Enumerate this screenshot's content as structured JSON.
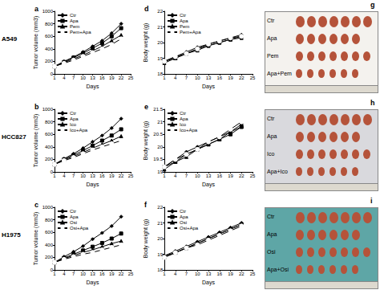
{
  "chart_data": [
    {
      "type": "line",
      "title": "a",
      "xlabel": "Days",
      "ylabel": "Tumor volume (mm3)",
      "x": [
        1,
        4,
        7,
        10,
        13,
        16,
        19,
        22
      ],
      "xlim": [
        1,
        25
      ],
      "xticks": [
        1,
        4,
        7,
        10,
        13,
        16,
        19,
        22,
        25
      ],
      "ylim": [
        0,
        1000
      ],
      "yticks": [
        0,
        200,
        400,
        600,
        800,
        1000
      ],
      "grid": false,
      "legend": "upper left",
      "series": [
        {
          "name": "Ctr",
          "color": "#000000",
          "marker": "diamond",
          "values": [
            120,
            200,
            270,
            350,
            440,
            530,
            650,
            800
          ]
        },
        {
          "name": "Apa",
          "color": "#000000",
          "marker": "square",
          "values": [
            120,
            190,
            260,
            330,
            410,
            490,
            600,
            730
          ]
        },
        {
          "name": "Pem",
          "color": "#000000",
          "marker": "triangle",
          "values": [
            120,
            180,
            240,
            300,
            370,
            440,
            530,
            620
          ]
        },
        {
          "name": "Pem+Apa",
          "color": "#000000",
          "marker": "open_circle",
          "values": [
            120,
            170,
            220,
            280,
            340,
            400,
            470,
            560
          ]
        }
      ]
    },
    {
      "type": "line",
      "title": "b",
      "xlabel": "Days",
      "ylabel": "Tumor volume (mm3)",
      "x": [
        1,
        4,
        7,
        10,
        13,
        16,
        19,
        22
      ],
      "xlim": [
        1,
        25
      ],
      "xticks": [
        1,
        4,
        7,
        10,
        13,
        16,
        19,
        22,
        25
      ],
      "ylim": [
        0,
        1000
      ],
      "yticks": [
        0,
        200,
        400,
        600,
        800,
        1000
      ],
      "grid": false,
      "legend": "upper left",
      "series": [
        {
          "name": "Ctr",
          "color": "#000000",
          "marker": "diamond",
          "values": [
            120,
            210,
            290,
            380,
            480,
            580,
            700,
            850
          ]
        },
        {
          "name": "Apa",
          "color": "#000000",
          "marker": "square",
          "values": [
            120,
            200,
            270,
            340,
            420,
            500,
            580,
            680
          ]
        },
        {
          "name": "Ico",
          "color": "#000000",
          "marker": "triangle",
          "values": [
            120,
            190,
            250,
            310,
            380,
            440,
            500,
            570
          ]
        },
        {
          "name": "Ico+Apa",
          "color": "#000000",
          "marker": "open_circle",
          "values": [
            120,
            180,
            230,
            290,
            350,
            400,
            450,
            500
          ]
        }
      ]
    },
    {
      "type": "line",
      "title": "c",
      "xlabel": "Days",
      "ylabel": "Tumor volume (mm3)",
      "x": [
        1,
        4,
        7,
        10,
        13,
        16,
        19,
        22
      ],
      "xlim": [
        1,
        25
      ],
      "xticks": [
        1,
        4,
        7,
        10,
        13,
        16,
        19,
        22,
        25
      ],
      "ylim": [
        0,
        1000
      ],
      "yticks": [
        0,
        200,
        400,
        600,
        800,
        1000
      ],
      "grid": false,
      "legend": "upper left",
      "series": [
        {
          "name": "Ctr",
          "color": "#000000",
          "marker": "diamond",
          "values": [
            120,
            210,
            290,
            380,
            490,
            590,
            700,
            850
          ]
        },
        {
          "name": "Apa",
          "color": "#000000",
          "marker": "square",
          "values": [
            120,
            190,
            250,
            310,
            370,
            430,
            500,
            580
          ]
        },
        {
          "name": "Osi",
          "color": "#000000",
          "marker": "triangle",
          "values": [
            120,
            180,
            230,
            280,
            320,
            370,
            420,
            460
          ]
        },
        {
          "name": "Osi+Apa",
          "color": "#000000",
          "marker": "open_circle",
          "values": [
            120,
            170,
            210,
            250,
            280,
            320,
            360,
            400
          ]
        }
      ]
    },
    {
      "type": "line",
      "title": "d",
      "xlabel": "Days",
      "ylabel": "Body weight (g)",
      "x": [
        1,
        4,
        7,
        10,
        13,
        16,
        19,
        22
      ],
      "xlim": [
        1,
        25
      ],
      "xticks": [
        1,
        4,
        7,
        10,
        13,
        16,
        19,
        22,
        25
      ],
      "ylim": [
        18,
        22
      ],
      "yticks": [
        18,
        19,
        20,
        21,
        22
      ],
      "grid": false,
      "legend": "upper left",
      "series": [
        {
          "name": "Ctr",
          "color": "#000000",
          "marker": "diamond",
          "values": [
            18.8,
            19.1,
            19.4,
            19.7,
            19.9,
            20.1,
            20.3,
            20.5
          ]
        },
        {
          "name": "Apa",
          "color": "#000000",
          "marker": "square",
          "values": [
            18.8,
            19.0,
            19.3,
            19.6,
            19.8,
            20.0,
            20.2,
            20.4
          ]
        },
        {
          "name": "Pem",
          "color": "#000000",
          "marker": "triangle",
          "values": [
            18.7,
            19.0,
            19.3,
            19.5,
            19.8,
            20.0,
            20.2,
            20.3
          ]
        },
        {
          "name": "Pem+Apa",
          "color": "#000000",
          "marker": "open_circle",
          "values": [
            18.8,
            19.1,
            19.3,
            19.6,
            19.9,
            20.1,
            20.3,
            20.4
          ]
        }
      ]
    },
    {
      "type": "line",
      "title": "e",
      "xlabel": "Days",
      "ylabel": "Body weight (g)",
      "x": [
        1,
        4,
        7,
        10,
        13,
        16,
        19,
        22
      ],
      "xlim": [
        1,
        25
      ],
      "xticks": [
        1,
        4,
        7,
        10,
        13,
        16,
        19,
        22,
        25
      ],
      "ylim": [
        19,
        21.5
      ],
      "yticks": [
        19,
        19.5,
        20,
        20.5,
        21,
        21.5
      ],
      "grid": false,
      "legend": "upper left",
      "series": [
        {
          "name": "Ctr",
          "color": "#000000",
          "marker": "diamond",
          "values": [
            19.2,
            19.5,
            19.8,
            20.0,
            20.2,
            20.4,
            20.6,
            20.9
          ]
        },
        {
          "name": "Apa",
          "color": "#000000",
          "marker": "square",
          "values": [
            19.2,
            19.4,
            19.7,
            19.9,
            20.1,
            20.3,
            20.5,
            20.8
          ]
        },
        {
          "name": "Ico",
          "color": "#000000",
          "marker": "triangle",
          "values": [
            19.1,
            19.4,
            19.6,
            19.9,
            20.1,
            20.3,
            20.6,
            20.8
          ]
        },
        {
          "name": "Ico+Apa",
          "color": "#000000",
          "marker": "open_circle",
          "values": [
            19.2,
            19.5,
            19.7,
            19.9,
            20.2,
            20.4,
            20.7,
            21.0
          ]
        }
      ]
    },
    {
      "type": "line",
      "title": "f",
      "xlabel": "Days",
      "ylabel": "Body weight (g)",
      "x": [
        1,
        4,
        7,
        10,
        13,
        16,
        19,
        22
      ],
      "xlim": [
        1,
        25
      ],
      "xticks": [
        1,
        4,
        7,
        10,
        13,
        16,
        19,
        22,
        25
      ],
      "ylim": [
        18,
        22
      ],
      "yticks": [
        18,
        19,
        20,
        21,
        22
      ],
      "grid": false,
      "legend": "upper left",
      "series": [
        {
          "name": "Ctr",
          "color": "#000000",
          "marker": "diamond",
          "values": [
            18.9,
            19.2,
            19.5,
            19.8,
            20.1,
            20.4,
            20.7,
            21.0
          ]
        },
        {
          "name": "Apa",
          "color": "#000000",
          "marker": "square",
          "values": [
            18.8,
            19.1,
            19.4,
            19.7,
            20.0,
            20.3,
            20.6,
            20.9
          ]
        },
        {
          "name": "Osi",
          "color": "#000000",
          "marker": "triangle",
          "values": [
            18.9,
            19.1,
            19.4,
            19.7,
            20.0,
            20.3,
            20.6,
            20.9
          ]
        },
        {
          "name": "Osi+Apa",
          "color": "#000000",
          "marker": "open_circle",
          "values": [
            18.8,
            19.1,
            19.4,
            19.6,
            19.9,
            20.2,
            20.5,
            20.8
          ]
        }
      ]
    }
  ],
  "row_labels": [
    "A549",
    "HCC827",
    "H1975"
  ],
  "photos": [
    {
      "title": "g",
      "labels": [
        "Ctr",
        "Apa",
        "Pem",
        "Apa+Pem"
      ]
    },
    {
      "title": "h",
      "labels": [
        "Ctr",
        "Apa",
        "Ico",
        "Apa+Ico"
      ]
    },
    {
      "title": "i",
      "labels": [
        "Ctr",
        "Apa",
        "Osi",
        "Apa+Osi"
      ]
    }
  ]
}
